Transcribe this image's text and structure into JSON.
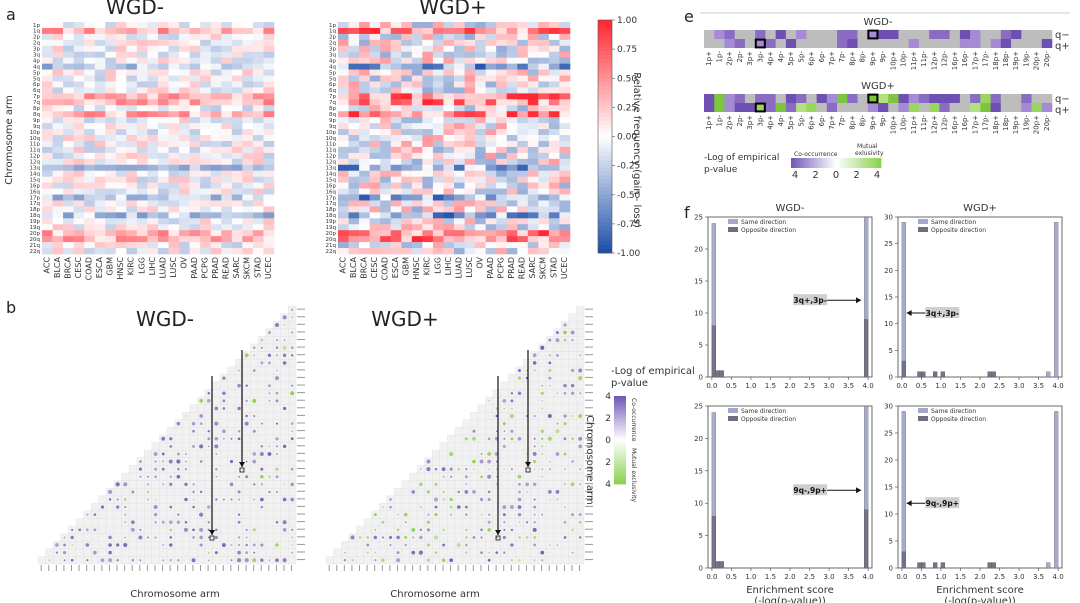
{
  "panels": {
    "a": "a",
    "b": "b",
    "e": "e",
    "f": "f"
  },
  "heatmaps": {
    "titles": [
      "WGD-",
      "WGD+"
    ],
    "y_axis_label": "Chromosome arm",
    "arms": [
      "1p",
      "1q",
      "2p",
      "2q",
      "3p",
      "3q",
      "4p",
      "4q",
      "5p",
      "5q",
      "6p",
      "6q",
      "7p",
      "7q",
      "8p",
      "8q",
      "9p",
      "9q",
      "10p",
      "10q",
      "11p",
      "11q",
      "12p",
      "12q",
      "13q",
      "14q",
      "15q",
      "16p",
      "16q",
      "17p",
      "17q",
      "18p",
      "18q",
      "19p",
      "19q",
      "20p",
      "20q",
      "21q",
      "22q"
    ],
    "cancers": [
      "ACC",
      "BLCA",
      "BRCA",
      "CESC",
      "COAD",
      "ESCA",
      "GBM",
      "HNSC",
      "KIRC",
      "LGG",
      "LIHC",
      "LUAD",
      "LUSC",
      "OV",
      "PAAD",
      "PCPG",
      "PRAD",
      "READ",
      "SARC",
      "SKCM",
      "STAD",
      "UCEC"
    ],
    "colorbar": {
      "label": "Relative frequency (gain - loss)",
      "ticks": [
        "1.00",
        "0.75",
        "0.50",
        "0.25",
        "0.00",
        "-0.25",
        "-0.50",
        "-0.75",
        "-1.00"
      ],
      "min": -1.0,
      "max": 1.0
    }
  },
  "triangles": {
    "titles": [
      "WGD-",
      "WGD+"
    ],
    "x_axis_label": "Chromosome arm",
    "y_axis_label": "Chromosome arm",
    "legend_title_line1": "-Log of empirical",
    "legend_title_line2": "p-value",
    "legend_ticks": [
      "4",
      "2",
      "0",
      "2",
      "4"
    ],
    "legend_top": "Co-occurrence",
    "legend_bottom": "Mutual exclusivity"
  },
  "panel_e": {
    "titles": [
      "WGD-",
      "WGD+"
    ],
    "row_labels": [
      "q−",
      "q+"
    ],
    "arms": [
      "1p+",
      "1p-",
      "2p+",
      "2p-",
      "3p+",
      "3p-",
      "4p+",
      "4p-",
      "5p+",
      "5p-",
      "6p+",
      "6p-",
      "7p+",
      "7p-",
      "8p+",
      "8p-",
      "9p+",
      "9p-",
      "10p+",
      "10p-",
      "11p+",
      "11p-",
      "12p+",
      "12p-",
      "16p+",
      "16p-",
      "17p+",
      "17p-",
      "18p+",
      "18p-",
      "19p+",
      "19p-",
      "20p+",
      "20p-"
    ],
    "legend_title_line1": "-Log of empirical",
    "legend_title_line2": "p-value",
    "legend_left": "Co-occurrence",
    "legend_right_line1": "Mutual",
    "legend_right_line2": "exlusivity",
    "legend_ticks": [
      "4",
      "2",
      "0",
      "2",
      "4"
    ]
  },
  "chart_data": [
    {
      "type": "bar",
      "title": "WGD-",
      "annotation": "3q+,3p-",
      "xlabel": "",
      "ylabel": "",
      "xlim": [
        -0.1,
        4.1
      ],
      "ylim": [
        0,
        25
      ],
      "x_ticks": [
        "0.0",
        "0.5",
        "1.0",
        "1.5",
        "2.0",
        "2.5",
        "3.0",
        "3.5",
        "4.0"
      ],
      "y_ticks": [
        "0",
        "5",
        "10",
        "15",
        "20",
        "25"
      ],
      "legend": [
        "Same direction",
        "Opposite direction"
      ],
      "series": [
        {
          "name": "Same direction",
          "x": [
            0.0,
            0.1,
            0.2,
            3.9
          ],
          "values": [
            24,
            1,
            1,
            25
          ]
        },
        {
          "name": "Opposite direction",
          "x": [
            0.0,
            0.1,
            0.2,
            3.9
          ],
          "values": [
            8,
            1,
            1,
            9
          ]
        }
      ]
    },
    {
      "type": "bar",
      "title": "WGD+",
      "annotation": "3q+,3p-",
      "xlabel": "",
      "ylabel": "",
      "xlim": [
        -0.1,
        4.1
      ],
      "ylim": [
        0,
        30
      ],
      "x_ticks": [
        "0.0",
        "0.5",
        "1.0",
        "1.5",
        "2.0",
        "2.5",
        "3.0",
        "3.5",
        "4.0"
      ],
      "y_ticks": [
        "0",
        "5",
        "10",
        "15",
        "20",
        "25",
        "30"
      ],
      "legend": [
        "Same direction",
        "Opposite direction"
      ],
      "series": [
        {
          "name": "Same direction",
          "x": [
            0.0,
            0.4,
            0.5,
            0.8,
            1.0,
            2.2,
            2.3,
            3.7,
            3.9
          ],
          "values": [
            29,
            1,
            1,
            1,
            1,
            1,
            1,
            1,
            29
          ]
        },
        {
          "name": "Opposite direction",
          "x": [
            0.0,
            0.4,
            0.5,
            0.8,
            1.0,
            2.2,
            2.3
          ],
          "values": [
            3,
            1,
            1,
            1,
            1,
            1,
            1
          ]
        }
      ]
    },
    {
      "type": "bar",
      "title": "",
      "annotation": "9q-,9p+",
      "xlabel": "Enrichment score",
      "xlabel2": "(-log(p-value))",
      "ylabel": "",
      "xlim": [
        -0.1,
        4.1
      ],
      "ylim": [
        0,
        25
      ],
      "x_ticks": [
        "0.0",
        "0.5",
        "1.0",
        "1.5",
        "2.0",
        "2.5",
        "3.0",
        "3.5",
        "4.0"
      ],
      "y_ticks": [
        "0",
        "5",
        "10",
        "15",
        "20",
        "25"
      ],
      "legend": [
        "Same direction",
        "Opposite direction"
      ],
      "series": [
        {
          "name": "Same direction",
          "x": [
            0.0,
            0.1,
            0.2,
            3.9
          ],
          "values": [
            24,
            1,
            1,
            25
          ]
        },
        {
          "name": "Opposite direction",
          "x": [
            0.0,
            0.1,
            0.2,
            3.9
          ],
          "values": [
            8,
            1,
            1,
            9
          ]
        }
      ]
    },
    {
      "type": "bar",
      "title": "",
      "annotation": "9q-,9p+",
      "xlabel": "Enrichment score",
      "xlabel2": "(-log(p-value))",
      "ylabel": "",
      "xlim": [
        -0.1,
        4.1
      ],
      "ylim": [
        0,
        30
      ],
      "x_ticks": [
        "0.0",
        "0.5",
        "1.0",
        "1.5",
        "2.0",
        "2.5",
        "3.0",
        "3.5",
        "4.0"
      ],
      "y_ticks": [
        "0",
        "5",
        "10",
        "15",
        "20",
        "25",
        "30"
      ],
      "legend": [
        "Same direction",
        "Opposite direction"
      ],
      "series": [
        {
          "name": "Same direction",
          "x": [
            0.0,
            0.4,
            0.5,
            0.8,
            1.0,
            2.2,
            2.3,
            3.7,
            3.9
          ],
          "values": [
            29,
            1,
            1,
            1,
            1,
            1,
            1,
            1,
            29
          ]
        },
        {
          "name": "Opposite direction",
          "x": [
            0.0,
            0.4,
            0.5,
            0.8,
            1.0,
            2.2,
            2.3
          ],
          "values": [
            3,
            1,
            1,
            1,
            1,
            1,
            1
          ]
        }
      ]
    }
  ],
  "colors": {
    "red": "#e8313a",
    "blue": "#2a63ad",
    "purple": "#7b5cb8",
    "green": "#8fd14f",
    "same": "#a3a8cb",
    "opposite": "#6d6f80"
  }
}
